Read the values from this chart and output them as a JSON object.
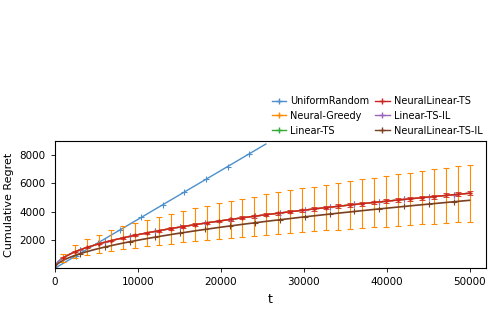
{
  "xlabel": "t",
  "ylabel": "Cumulative Regret",
  "xlim": [
    0,
    52000
  ],
  "ylim": [
    0,
    9000
  ],
  "yticks": [
    2000,
    4000,
    6000,
    8000
  ],
  "xticks": [
    0,
    10000,
    20000,
    30000,
    40000,
    50000
  ],
  "xtick_labels": [
    "0",
    "10000",
    "20000",
    "30000",
    "40000",
    "50000"
  ],
  "legend_entries": [
    {
      "label": "UniformRandom",
      "color": "#4d8fcc"
    },
    {
      "label": "Neural-Greedy",
      "color": "#ff8c00"
    },
    {
      "label": "Linear-TS",
      "color": "#33aa33"
    },
    {
      "label": "NeuralLinear-TS",
      "color": "#cc2222"
    },
    {
      "label": "Linear-TS-IL",
      "color": "#9966bb"
    },
    {
      "label": "NeuralLinear-TS-IL",
      "color": "#7a4020"
    }
  ],
  "colors": {
    "uniform_random": "#4d8fcc",
    "neural_greedy": "#ff8c00",
    "linear_ts": "#33aa33",
    "neurallinear_ts": "#cc2222",
    "linear_ts_il": "#9966bb",
    "neurallinear_ts_il": "#7a4020"
  },
  "uniform_random_slope": 0.345,
  "uniform_random_cutoff": 8800,
  "neural_greedy_end_mean": 5300,
  "neural_greedy_end_std": 2000,
  "linear_ts_end": 5300,
  "neurallinear_ts_end": 5300,
  "neurallinear_ts_std": 150,
  "linear_ts_il_end": 5300,
  "neurallinear_ts_il_end": 4800,
  "n_errorbar_ng": 35,
  "n_errorbar_nlts": 35,
  "figsize": [
    4.92,
    3.1
  ],
  "dpi": 100
}
